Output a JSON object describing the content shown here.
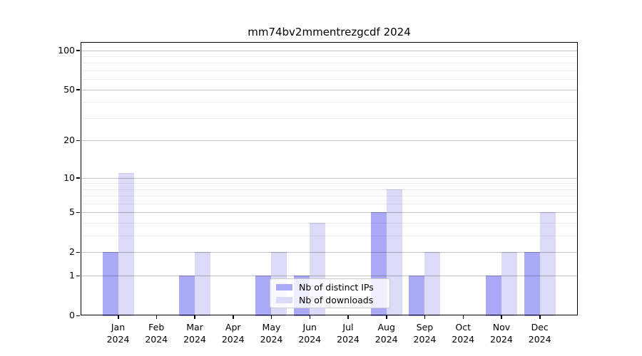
{
  "chart_data": {
    "type": "bar",
    "title": "mm74bv2mmentrezgcdf 2024",
    "categories": [
      "Jan",
      "Feb",
      "Mar",
      "Apr",
      "May",
      "Jun",
      "Jul",
      "Aug",
      "Sep",
      "Oct",
      "Nov",
      "Dec"
    ],
    "x_tick_year": "2024",
    "series": [
      {
        "name": "Nb of distinct IPs",
        "color": "#a9a9f7",
        "values": [
          2,
          0,
          1,
          0,
          1,
          1,
          0,
          5,
          1,
          0,
          1,
          2
        ]
      },
      {
        "name": "Nb of downloads",
        "color": "#dbdbf8",
        "values": [
          11,
          0,
          2,
          0,
          2,
          4,
          0,
          8,
          2,
          0,
          2,
          5
        ]
      }
    ],
    "xlabel": "",
    "ylabel": "",
    "y_scale": "log10(value+1)",
    "y_ticks": [
      0,
      1,
      2,
      5,
      10,
      20,
      50,
      100
    ],
    "y_minor_ticks": [
      3,
      4,
      6,
      7,
      8,
      9,
      30,
      40,
      60,
      70,
      80,
      90
    ],
    "ylim": [
      0,
      115
    ],
    "grid": "major-and-minor, drawn above bars",
    "legend_position": "lower center inside plot"
  },
  "colors": {
    "background": "#ffffff",
    "axis": "#000000",
    "grid_major": "rgba(0,0,0,0.24)",
    "grid_minor": "rgba(0,0,0,0.07)",
    "legend_border": "#cccccc"
  }
}
